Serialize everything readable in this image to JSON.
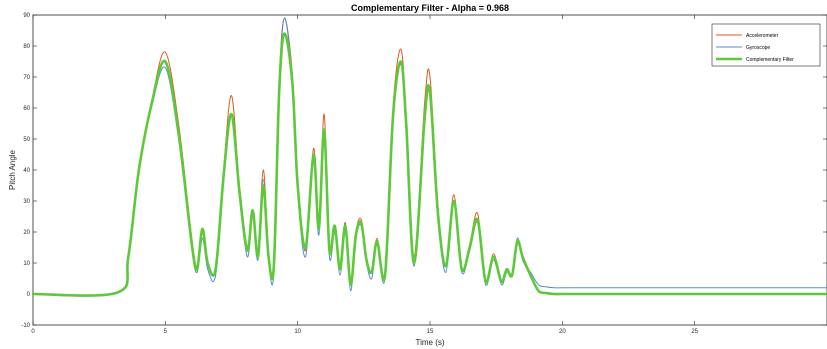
{
  "chart_data": {
    "type": "line",
    "title": "Complementary Filter - Alpha = 0.968",
    "xlabel": "Time (s)",
    "ylabel": "Pitch Angle",
    "xlim": [
      0,
      30
    ],
    "ylim": [
      -10,
      90
    ],
    "xticks": [
      0,
      5,
      10,
      15,
      20,
      25
    ],
    "yticks": [
      -10,
      0,
      10,
      20,
      30,
      40,
      50,
      60,
      70,
      80,
      90
    ],
    "xtick_labels": [
      "0",
      "5",
      "10",
      "15",
      "20",
      "25"
    ],
    "ytick_labels": [
      "-10",
      "0",
      "10",
      "20",
      "30",
      "40",
      "50",
      "60",
      "70",
      "80",
      "90"
    ],
    "grid": false,
    "legend_position": "top-right",
    "legend": [
      "Accelerometer",
      "Gyroscope",
      "Complementary Filter"
    ],
    "series": [
      {
        "name": "Accelerometer",
        "color": "#e05a1e",
        "x": [
          0,
          3.2,
          3.6,
          4.0,
          4.5,
          5.0,
          5.5,
          6.0,
          6.2,
          6.4,
          6.6,
          6.9,
          7.2,
          7.5,
          7.8,
          8.1,
          8.3,
          8.5,
          8.7,
          8.9,
          9.1,
          9.3,
          9.5,
          9.8,
          10.0,
          10.3,
          10.6,
          10.8,
          11.0,
          11.2,
          11.4,
          11.6,
          11.8,
          12.0,
          12.2,
          12.4,
          12.6,
          12.8,
          13.0,
          13.3,
          13.6,
          13.9,
          14.1,
          14.4,
          14.8,
          15.0,
          15.3,
          15.6,
          15.9,
          16.2,
          16.5,
          16.8,
          17.1,
          17.4,
          17.7,
          17.9,
          18.1,
          18.3,
          18.5,
          18.8,
          19.1,
          19.4,
          19.7,
          20.0,
          21.0,
          25.0,
          30.0
        ],
        "values": [
          0,
          0.5,
          12,
          40,
          63,
          78,
          55,
          18,
          9,
          20,
          10,
          8,
          40,
          64,
          35,
          15,
          27,
          13,
          40,
          14,
          9,
          68,
          89,
          71,
          37,
          14,
          47,
          22,
          58,
          15,
          22,
          9,
          23,
          3,
          20,
          24,
          12,
          7,
          18,
          7,
          60,
          79,
          57,
          12,
          62,
          70,
          28,
          9,
          32,
          8,
          16,
          26,
          4,
          13,
          4,
          8,
          6,
          17,
          11,
          6,
          1,
          0.3,
          0,
          0,
          0,
          0,
          0
        ]
      },
      {
        "name": "Gyroscope",
        "color": "#5a8ad6",
        "x": [
          0,
          3.2,
          3.6,
          4.0,
          4.5,
          5.0,
          5.5,
          6.0,
          6.2,
          6.4,
          6.6,
          6.9,
          7.2,
          7.5,
          7.8,
          8.1,
          8.3,
          8.5,
          8.7,
          8.9,
          9.1,
          9.3,
          9.5,
          9.8,
          10.0,
          10.3,
          10.6,
          10.8,
          11.0,
          11.2,
          11.4,
          11.6,
          11.8,
          12.0,
          12.2,
          12.4,
          12.6,
          12.8,
          13.0,
          13.3,
          13.6,
          13.9,
          14.1,
          14.4,
          14.8,
          15.0,
          15.3,
          15.6,
          15.9,
          16.2,
          16.5,
          16.8,
          17.1,
          17.4,
          17.7,
          17.9,
          18.1,
          18.3,
          18.5,
          18.8,
          19.1,
          19.4,
          19.7,
          20.0,
          21.0,
          25.0,
          30.0
        ],
        "values": [
          0,
          0.5,
          12,
          40,
          61,
          73,
          50,
          15,
          7,
          18,
          8,
          6,
          36,
          57,
          31,
          12,
          25,
          11,
          37,
          11,
          7,
          65,
          89,
          69,
          33,
          12,
          43,
          19,
          53,
          12,
          20,
          6,
          20,
          1,
          18,
          22,
          10,
          5,
          16,
          5,
          57,
          74,
          53,
          9,
          58,
          65,
          25,
          7,
          29,
          7,
          14,
          23,
          3,
          11,
          3,
          7,
          6,
          18,
          11,
          7,
          3,
          2.3,
          2,
          2,
          2,
          2,
          2
        ]
      },
      {
        "name": "Complementary Filter",
        "color": "#5dc93a",
        "x": [
          0,
          3.2,
          3.6,
          4.0,
          4.5,
          5.0,
          5.5,
          6.0,
          6.2,
          6.4,
          6.6,
          6.9,
          7.2,
          7.5,
          7.8,
          8.1,
          8.3,
          8.5,
          8.7,
          8.9,
          9.1,
          9.3,
          9.5,
          9.8,
          10.0,
          10.3,
          10.6,
          10.8,
          11.0,
          11.2,
          11.4,
          11.6,
          11.8,
          12.0,
          12.2,
          12.4,
          12.6,
          12.8,
          13.0,
          13.3,
          13.6,
          13.9,
          14.1,
          14.4,
          14.8,
          15.0,
          15.3,
          15.6,
          15.9,
          16.2,
          16.5,
          16.8,
          17.1,
          17.4,
          17.7,
          17.9,
          18.1,
          18.3,
          18.5,
          18.8,
          19.1,
          19.4,
          19.7,
          20.0,
          21.0,
          25.0,
          30.0
        ],
        "values": [
          0,
          0.5,
          12,
          40,
          62,
          75,
          52,
          16,
          8,
          21,
          10,
          8,
          38,
          58,
          33,
          14,
          27,
          12,
          35,
          12,
          9,
          65,
          84,
          68,
          35,
          15,
          45,
          21,
          53,
          14,
          22,
          8,
          22,
          3,
          19,
          23,
          11,
          7,
          17,
          6,
          57,
          75,
          55,
          10,
          57,
          65,
          26,
          9,
          30,
          8,
          15,
          24,
          4,
          12,
          4,
          8,
          6,
          17,
          12,
          6,
          1,
          0.3,
          0,
          0,
          0,
          0,
          0
        ]
      }
    ]
  }
}
